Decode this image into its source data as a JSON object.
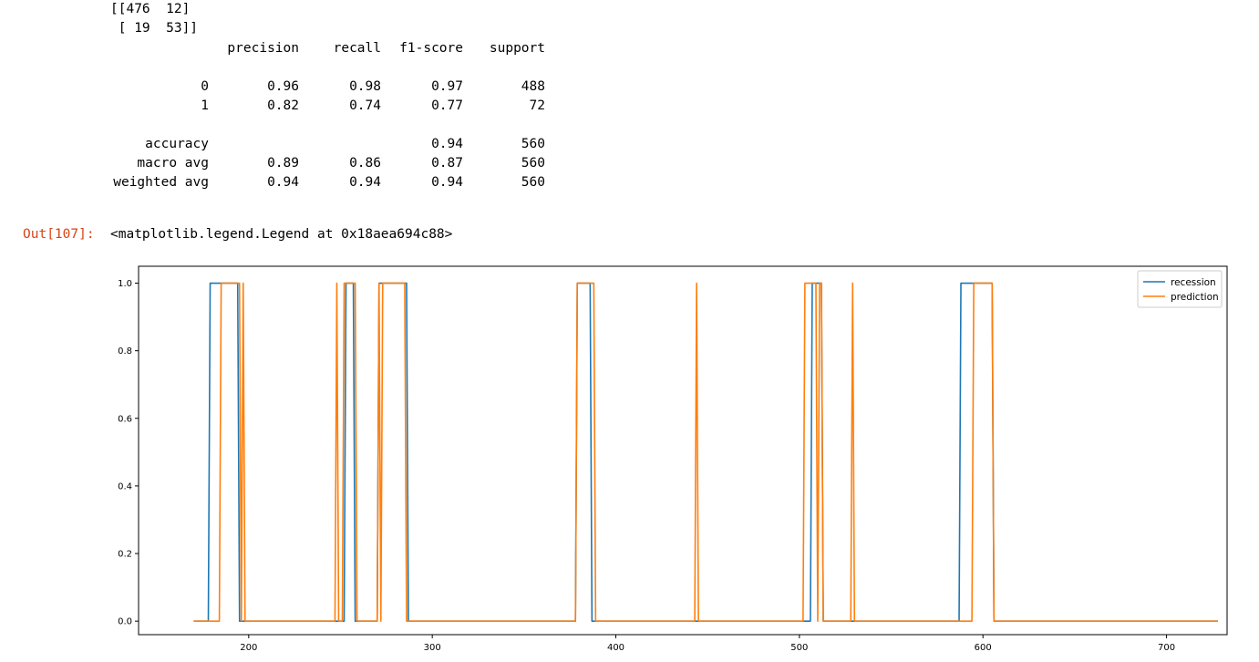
{
  "output_text": {
    "confusion_matrix_lines": [
      "[[476  12]",
      " [ 19  53]]"
    ],
    "report_header": [
      "precision",
      "recall",
      "f1-score",
      "support"
    ],
    "report_rows": [
      {
        "label": "0",
        "values": [
          "0.96",
          "0.98",
          "0.97",
          "488"
        ]
      },
      {
        "label": "1",
        "values": [
          "0.82",
          "0.74",
          "0.77",
          "72"
        ]
      },
      {
        "label": "accuracy",
        "values": [
          "",
          "",
          "0.94",
          "560"
        ]
      },
      {
        "label": "macro avg",
        "values": [
          "0.89",
          "0.86",
          "0.87",
          "560"
        ]
      },
      {
        "label": "weighted avg",
        "values": [
          "0.94",
          "0.94",
          "0.94",
          "560"
        ]
      }
    ],
    "out_prompt": "Out[107]:",
    "out_value": "<matplotlib.legend.Legend at 0x18aea694c88>"
  },
  "chart_data": {
    "type": "line",
    "title": "",
    "xlabel": "",
    "ylabel": "",
    "xlim": [
      140,
      733
    ],
    "ylim": [
      -0.04,
      1.05
    ],
    "x_ticks": [
      200,
      300,
      400,
      500,
      600,
      700
    ],
    "y_ticks": [
      0.0,
      0.2,
      0.4,
      0.6,
      0.8,
      1.0
    ],
    "x_tick_labels": [
      "200",
      "300",
      "400",
      "500",
      "600",
      "700"
    ],
    "y_tick_labels": [
      "0.0",
      "0.2",
      "0.4",
      "0.6",
      "0.8",
      "1.0"
    ],
    "grid": false,
    "legend_position": "top-right",
    "series": [
      {
        "name": "recession",
        "color": "#1f77b4",
        "x": [
          170,
          178,
          179,
          194,
          195,
          252,
          253,
          257,
          258,
          270,
          271,
          286,
          287,
          378,
          379,
          386,
          387,
          506,
          507,
          512,
          513,
          587,
          588,
          605,
          606,
          728
        ],
        "y": [
          0,
          0,
          1,
          1,
          0,
          0,
          1,
          1,
          0,
          0,
          1,
          1,
          0,
          0,
          1,
          1,
          0,
          0,
          1,
          1,
          0,
          0,
          1,
          1,
          0,
          0
        ]
      },
      {
        "name": "prediction",
        "color": "#ff7f0e",
        "x": [
          170,
          184,
          185,
          195,
          196,
          197,
          198,
          247,
          248,
          249,
          250,
          251,
          252,
          253,
          258,
          259,
          270,
          271,
          272,
          273,
          274,
          285,
          286,
          378,
          379,
          388,
          389,
          443,
          444,
          445,
          502,
          503,
          509,
          510,
          511,
          512,
          513,
          528,
          529,
          530,
          594,
          595,
          605,
          606,
          728
        ],
        "y": [
          0,
          0,
          1,
          1,
          0,
          1,
          0,
          0,
          1,
          0,
          0,
          0,
          1,
          1,
          1,
          0,
          0,
          1,
          0,
          1,
          1,
          1,
          0,
          0,
          1,
          1,
          0,
          0,
          1,
          0,
          0,
          1,
          1,
          0,
          1,
          1,
          0,
          0,
          1,
          0,
          0,
          1,
          1,
          0,
          0
        ]
      }
    ]
  }
}
